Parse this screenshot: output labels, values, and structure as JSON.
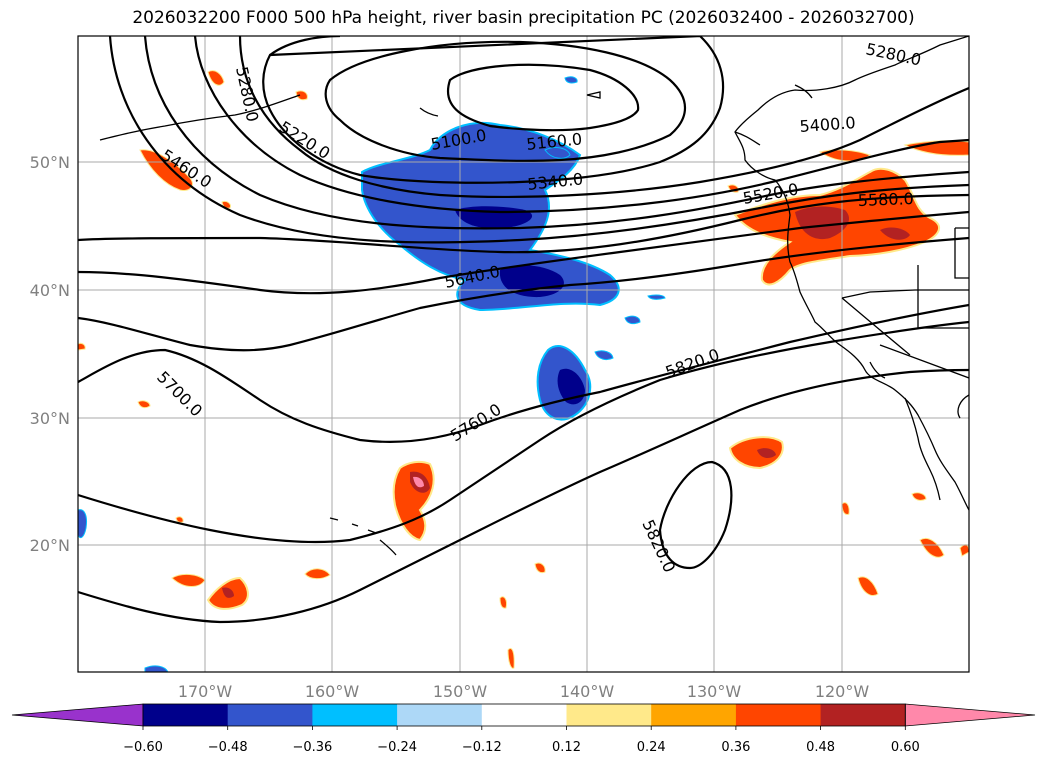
{
  "title": "2026032200 F000 500 hPa height, river basin precipitation PC (2026032400 - 2026032700)",
  "latitude_labels": [
    "50°N",
    "40°N",
    "30°N",
    "20°N"
  ],
  "longitude_labels": [
    "170°W",
    "160°W",
    "150°W",
    "140°W",
    "130°W",
    "120°W"
  ],
  "contour_labels": [
    "5280.0",
    "5280.0",
    "5220.0",
    "5100.0",
    "5160.0",
    "5340.0",
    "5400.0",
    "5460.0",
    "5520.0",
    "5580.0",
    "5640.0",
    "5700.0",
    "5760.0",
    "5820.0",
    "5820.0"
  ],
  "colorbar": {
    "ticks": [
      "−0.60",
      "−0.48",
      "−0.36",
      "−0.24",
      "−0.12",
      "0.12",
      "0.24",
      "0.36",
      "0.48",
      "0.60"
    ],
    "colors": [
      "#9932cc",
      "#00008b",
      "#3355cc",
      "#00bfff",
      "#add8f7",
      "#ffffff",
      "#ffe98a",
      "#ffa500",
      "#ff4500",
      "#b22222",
      "#ff88aa"
    ]
  },
  "colors": {
    "contour": "#000000",
    "gridline": "#a9a9a9",
    "coastline": "#000000"
  }
}
